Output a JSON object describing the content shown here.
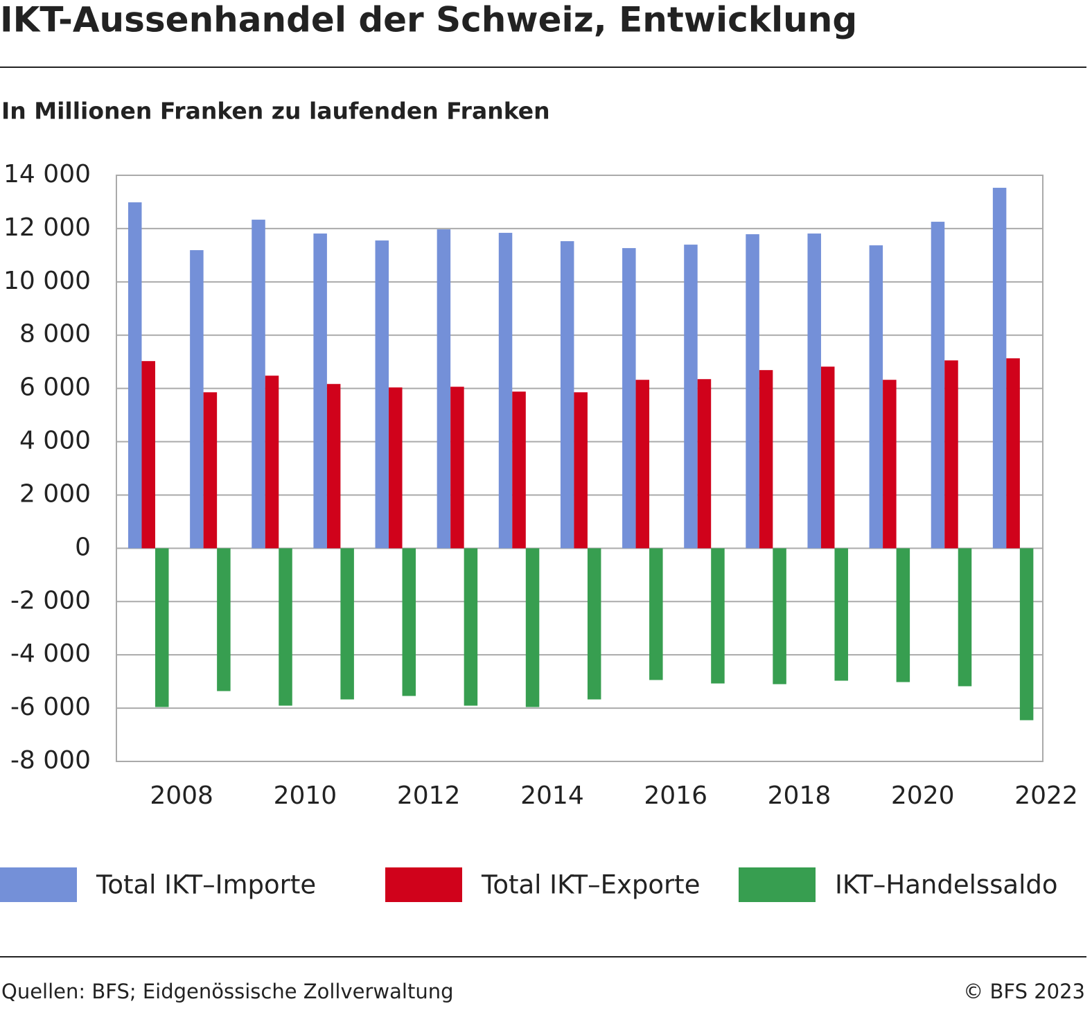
{
  "chart_data": {
    "type": "bar",
    "title": "IKT-Aussenhandel der Schweiz, Entwicklung",
    "subtitle": "In Millionen Franken zu laufenden Franken",
    "categories": [
      "2008",
      null,
      "2010",
      null,
      "2012",
      null,
      "2014",
      null,
      "2016",
      null,
      "2018",
      null,
      "2020",
      null,
      "2022"
    ],
    "series": [
      {
        "name": "Total IKT–Importe",
        "color": "#7490d8",
        "values": [
          12985,
          11190,
          12334,
          11814,
          11553,
          11970,
          11840,
          11527,
          11267,
          11397,
          11788,
          11814,
          11371,
          12256,
          13531
        ]
      },
      {
        "name": "Total IKT–Exporte",
        "color": "#d0021b",
        "values": [
          7026,
          5855,
          6479,
          6167,
          6037,
          6063,
          5881,
          5855,
          6323,
          6349,
          6688,
          6818,
          6323,
          7052,
          7130
        ]
      },
      {
        "name": "IKT–Handelssaldo",
        "color": "#379e50",
        "values": [
          -5959,
          -5360,
          -5907,
          -5673,
          -5543,
          -5907,
          -5959,
          -5673,
          -4944,
          -5074,
          -5100,
          -4970,
          -5022,
          -5178,
          -6453
        ]
      }
    ],
    "ylim": [
      -8000,
      14000
    ],
    "yticks": [
      {
        "value": -8000,
        "label": "-8 000"
      },
      {
        "value": -6000,
        "label": "-6 000"
      },
      {
        "value": -4000,
        "label": "-4 000"
      },
      {
        "value": -2000,
        "label": "-2 000"
      },
      0,
      {
        "value": 2000,
        "label": "2 000"
      },
      {
        "value": 4000,
        "label": "4 000"
      },
      {
        "value": 6000,
        "label": "6 000"
      },
      {
        "value": 8000,
        "label": "8 000"
      },
      {
        "value": 10000,
        "label": "10 000"
      },
      {
        "value": 12000,
        "label": "12 000"
      },
      {
        "value": 14000,
        "label": "14 000"
      }
    ],
    "grid": true,
    "legend": "bottom",
    "source": "Quellen: BFS; Eidgenössische Zollverwaltung",
    "copyright": "© BFS 2023"
  }
}
